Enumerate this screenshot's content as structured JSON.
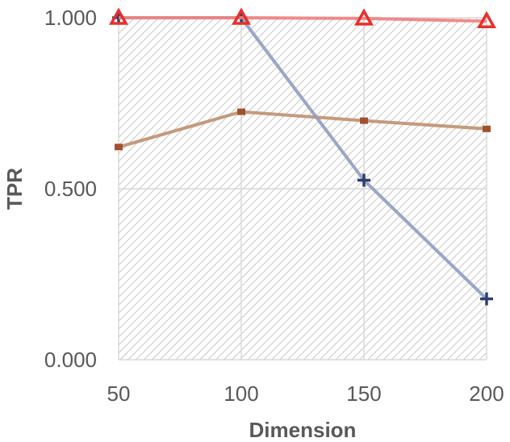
{
  "chart_data": {
    "type": "line",
    "title": "",
    "xlabel": "Dimension",
    "ylabel": "TPR",
    "x": [
      50,
      100,
      150,
      200
    ],
    "xlim": [
      50,
      200
    ],
    "ylim": [
      0,
      1
    ],
    "yticks": [
      "0.000",
      "0.500",
      "1.000"
    ],
    "xticks": [
      "50",
      "100",
      "150",
      "200"
    ],
    "grid": true,
    "legend": "none",
    "series": [
      {
        "values": [
          0.622,
          0.725,
          0.699,
          0.675
        ],
        "color": "#c09070",
        "marker": "square",
        "markerColor": "#a0522d"
      },
      {
        "values": [
          1.0,
          1.0,
          0.525,
          0.178
        ],
        "color": "#8e9ec0",
        "marker": "plus",
        "markerColor": "#2e3f6e"
      },
      {
        "values": [
          1.0,
          1.0,
          0.998,
          0.99
        ],
        "color": "#f08080",
        "marker": "triangle",
        "markerColor": "#e8302a"
      }
    ]
  }
}
